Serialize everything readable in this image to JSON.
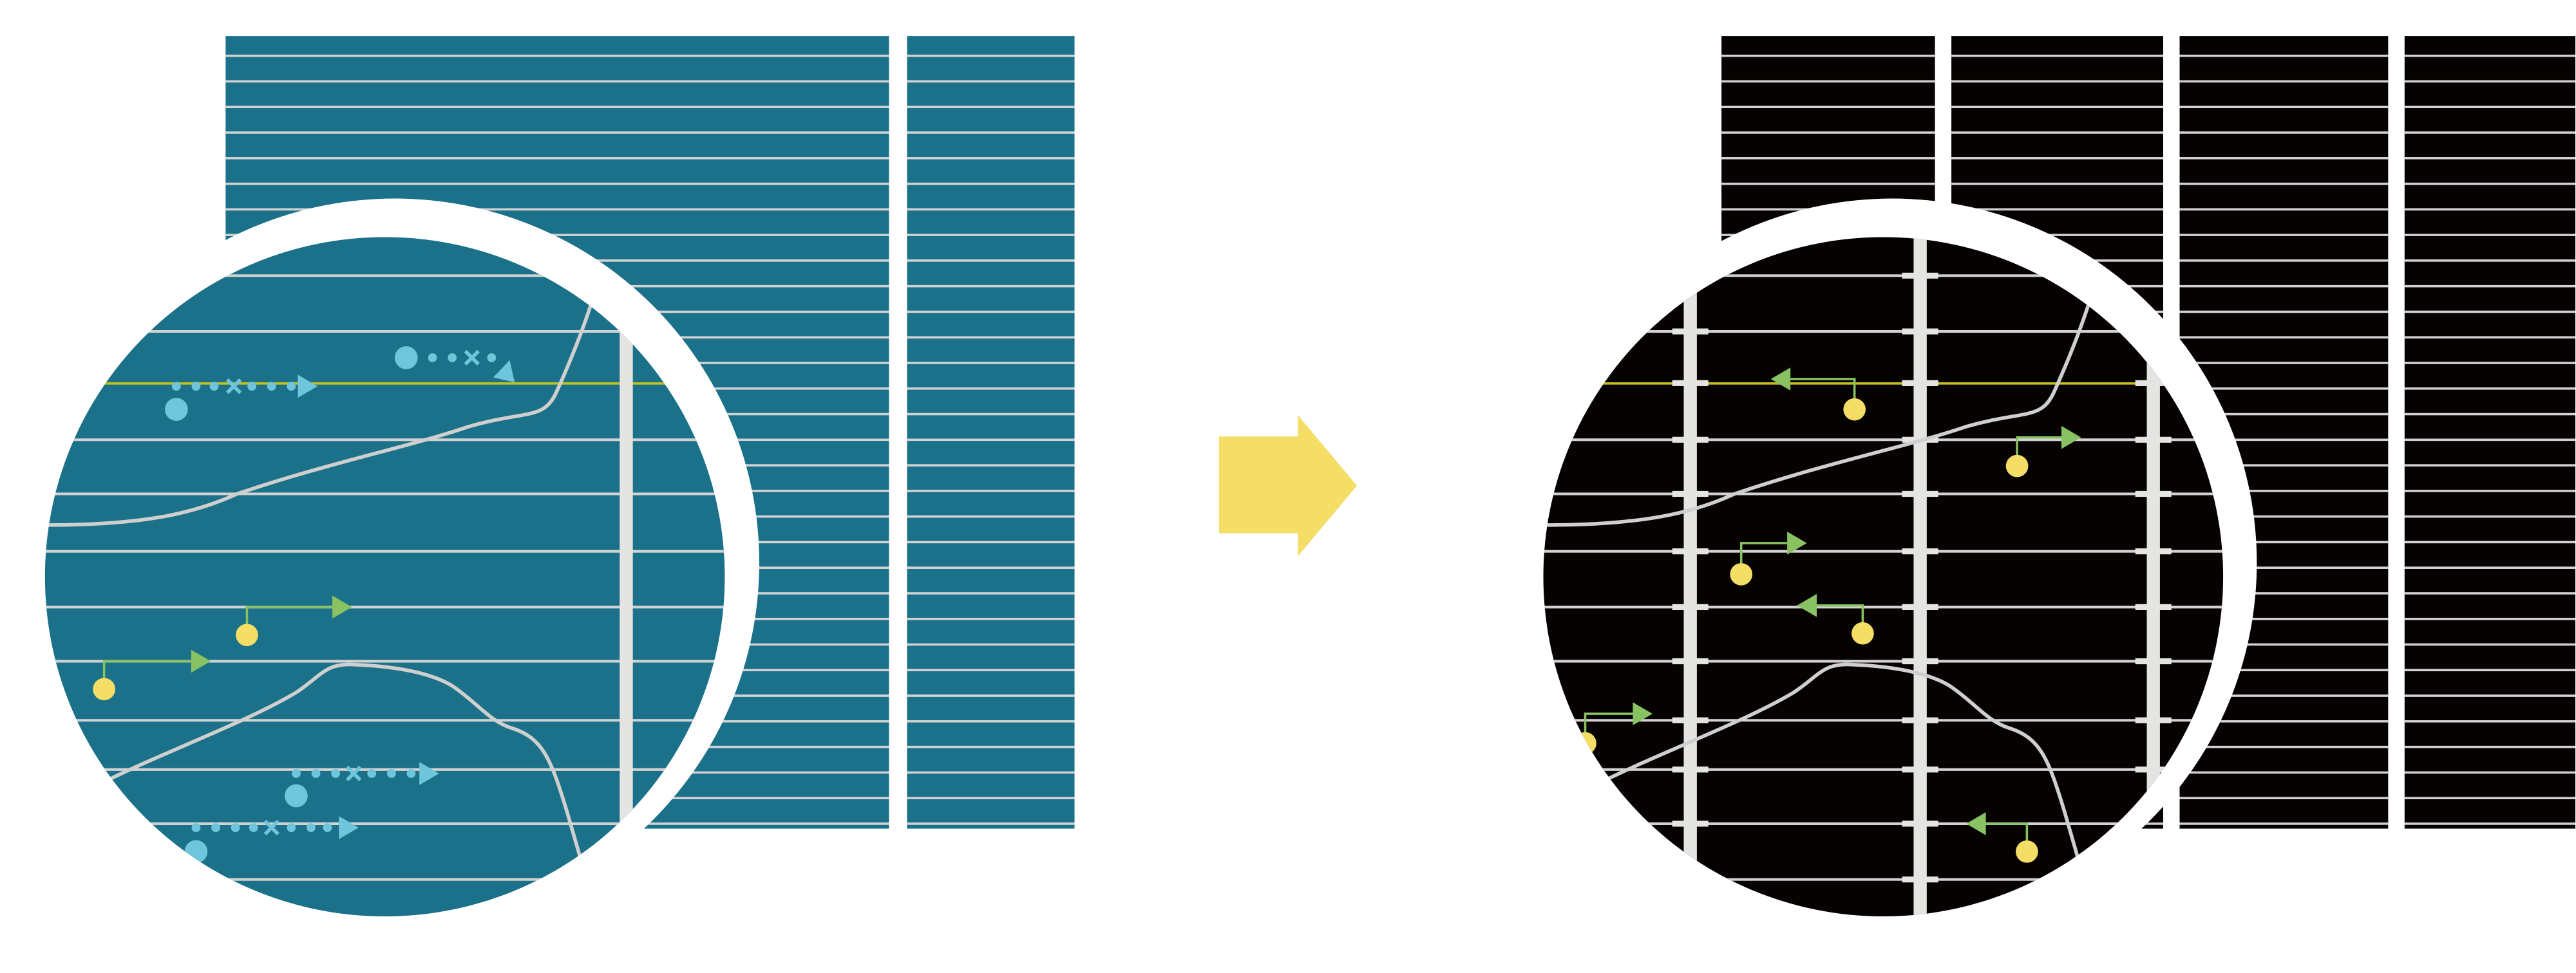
{
  "colors": {
    "background": "#ffffff",
    "left_panel": "#1b7189",
    "right_panel": "#060202",
    "grid_line": "#d2d2d2",
    "contact_bar": "#e4e4e2",
    "fermi_level": "#c4c21c",
    "carrier_yellow": "#f4de66",
    "path_green": "#88c262",
    "carrier_cyan": "#6ec5dc",
    "curve": "#cfcfcf",
    "arrow": "#f4de66"
  },
  "left_panel": {
    "icon": "teal-cell-magnified-icon"
  },
  "transition": {
    "icon": "right-arrow-icon"
  },
  "right_panel": {
    "icon": "black-cell-magnified-icon"
  }
}
